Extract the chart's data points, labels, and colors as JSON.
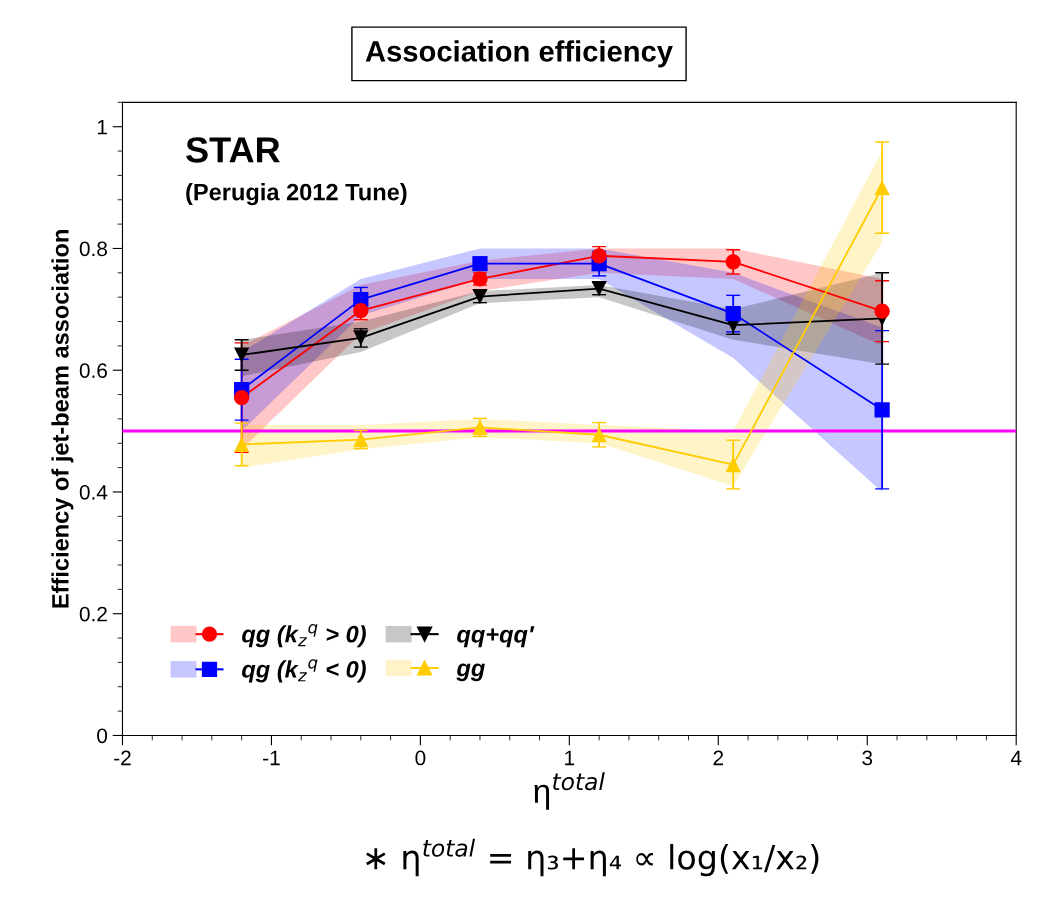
{
  "chart_data": {
    "type": "line",
    "title": "Association efficiency",
    "xlabel": "η$^{total}$",
    "ylabel": "Efficiency of jet-beam association",
    "x": [
      -1.2,
      -0.4,
      0.4,
      1.2,
      2.1,
      3.1
    ],
    "series": [
      {
        "name": "qg (k$_{z}$$^{q}$ > 0)",
        "color": "#ff0000",
        "marker": "circle",
        "values": [
          0.555,
          0.698,
          0.75,
          0.788,
          0.778,
          0.697
        ],
        "errors": [
          0.09,
          0.015,
          0.01,
          0.015,
          0.02,
          0.05
        ],
        "lower": [
          0.47,
          0.66,
          0.73,
          0.76,
          0.75,
          0.64
        ],
        "upper": [
          0.64,
          0.74,
          0.78,
          0.8,
          0.8,
          0.75
        ]
      },
      {
        "name": "qg (k$_{z}$$^{q}$ < 0)",
        "color": "#0000ff",
        "marker": "square",
        "values": [
          0.568,
          0.716,
          0.775,
          0.775,
          0.693,
          0.535
        ],
        "errors": [
          0.05,
          0.02,
          0.01,
          0.02,
          0.03,
          0.13
        ],
        "lower": [
          0.5,
          0.69,
          0.75,
          0.75,
          0.62,
          0.4
        ],
        "upper": [
          0.63,
          0.75,
          0.8,
          0.8,
          0.76,
          0.67
        ]
      },
      {
        "name": "qq+qq′",
        "color": "#000000",
        "marker": "triangle",
        "values": [
          0.625,
          0.653,
          0.721,
          0.734,
          0.674,
          0.685
        ],
        "errors": [
          0.025,
          0.015,
          0.01,
          0.01,
          0.015,
          0.075
        ],
        "lower": [
          0.59,
          0.63,
          0.71,
          0.72,
          0.65,
          0.61
        ],
        "upper": [
          0.65,
          0.68,
          0.73,
          0.74,
          0.7,
          0.76
        ]
      },
      {
        "name": "gg",
        "color": "#ffcc00",
        "marker": "triangle",
        "values": [
          0.478,
          0.486,
          0.506,
          0.494,
          0.445,
          0.9
        ],
        "errors": [
          0.035,
          0.015,
          0.015,
          0.02,
          0.04,
          0.075
        ],
        "lower": [
          0.44,
          0.47,
          0.49,
          0.48,
          0.41,
          0.81
        ],
        "upper": [
          0.51,
          0.51,
          0.52,
          0.51,
          0.5,
          0.96
        ]
      }
    ],
    "xlim": [
      -2,
      4
    ],
    "ylim": [
      0,
      1.04
    ],
    "xticks": [
      -2,
      -1,
      0,
      1,
      2,
      3,
      4
    ],
    "yticks": [
      0,
      0.2,
      0.4,
      0.6,
      0.8,
      1
    ],
    "ref_lines": [
      {
        "axis": "y",
        "value": 0.5,
        "color": "#ff00ff"
      }
    ],
    "annotations": [
      "STAR",
      "(Perugia 2012 Tune)",
      "∗ η$^{total}$ = η₃+η₄ ∝ log(x₁/x₂)"
    ],
    "legend": "bottom left",
    "grid": false
  }
}
